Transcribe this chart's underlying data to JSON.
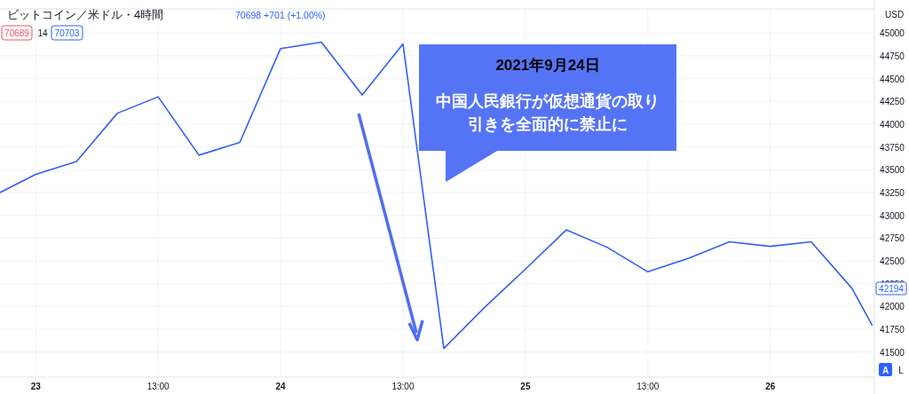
{
  "chart_data": {
    "type": "line",
    "title": "ビットコイン／米ドル・4時間",
    "ylabel": "USD",
    "x": [
      "2021-09-22T21:30",
      "2021-09-23T01:00",
      "2021-09-23T05:00",
      "2021-09-23T09:00",
      "2021-09-23T13:00",
      "2021-09-23T17:00",
      "2021-09-23T21:00",
      "2021-09-24T01:00",
      "2021-09-24T05:00",
      "2021-09-24T09:00",
      "2021-09-24T13:00",
      "2021-09-24T17:00",
      "2021-09-24T21:00",
      "2021-09-25T01:00",
      "2021-09-25T05:00",
      "2021-09-25T09:00",
      "2021-09-25T13:00",
      "2021-09-25T17:00",
      "2021-09-25T21:00",
      "2021-09-26T01:00",
      "2021-09-26T05:00",
      "2021-09-26T09:00",
      "2021-09-26T11:00"
    ],
    "series": [
      {
        "color": "#2f5ff5",
        "values": [
          43250,
          43450,
          43590,
          44120,
          44300,
          43660,
          43800,
          44830,
          44900,
          44320,
          44880,
          41540,
          41990,
          42410,
          42840,
          42650,
          42380,
          42530,
          42710,
          42660,
          42710,
          42200,
          41790
        ]
      }
    ],
    "xlim": [
      "2021-09-22T21:30",
      "2021-09-26T11:12"
    ],
    "ylim": [
      41225,
      45265
    ],
    "xticks": [
      {
        "value": "2021-09-23T01:00",
        "label": "23"
      },
      {
        "value": "2021-09-23T13:00",
        "label": "13:00"
      },
      {
        "value": "2021-09-24T01:00",
        "label": "24"
      },
      {
        "value": "2021-09-24T13:00",
        "label": "13:00"
      },
      {
        "value": "2021-09-25T01:00",
        "label": "25"
      },
      {
        "value": "2021-09-25T13:00",
        "label": "13:00"
      },
      {
        "value": "2021-09-26T01:00",
        "label": "26"
      }
    ],
    "yticks": [
      41500,
      41750,
      42000,
      42250,
      42500,
      42750,
      43000,
      43250,
      43500,
      43750,
      44000,
      44250,
      44500,
      44750,
      45000
    ],
    "grid": true,
    "marker": "none",
    "line_style": "solid",
    "annotations": [
      "2021年9月24日",
      "中国人民銀行が仮想通貨の取り引きを全面的に禁止に",
      "70698 +701 (+1.00%)",
      "70689",
      "14",
      "70703",
      "42194",
      "A",
      "L"
    ]
  }
}
